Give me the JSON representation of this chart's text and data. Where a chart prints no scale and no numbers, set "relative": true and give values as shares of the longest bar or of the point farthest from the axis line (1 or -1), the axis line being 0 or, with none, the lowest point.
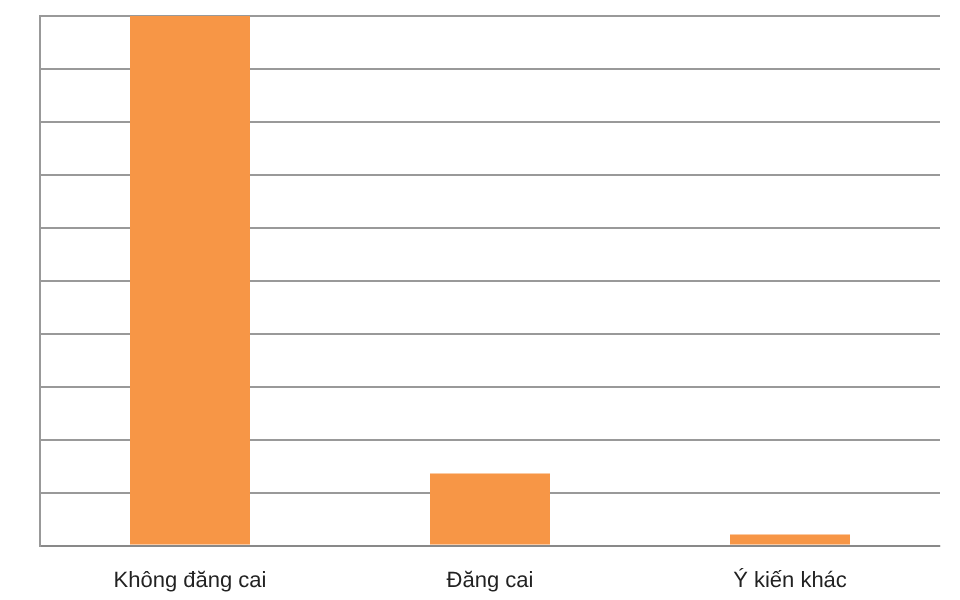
{
  "chart_data": {
    "type": "bar",
    "categories": [
      "Không đăng cai",
      "Đăng cai",
      "Ý kiến khác"
    ],
    "values": [
      1,
      0.136,
      0.021
    ],
    "color": "#f79646",
    "relative": true,
    "grid": "y"
  }
}
